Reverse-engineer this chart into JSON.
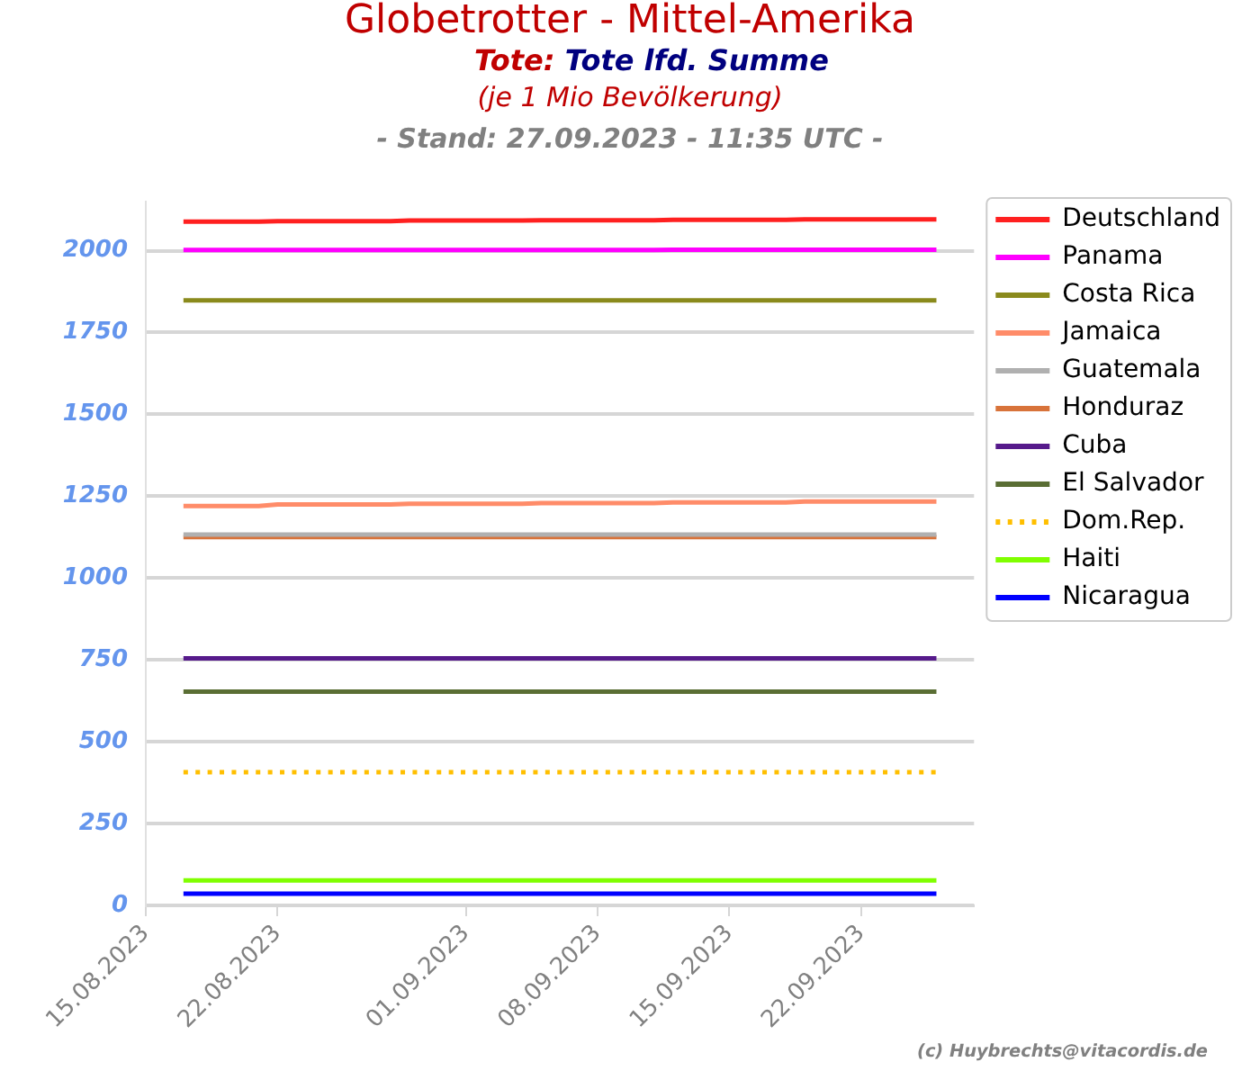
{
  "chart_data": {
    "type": "line",
    "title": "Globetrotter - Mittel-Amerika",
    "subtitle": "Tote: Tote lfd. Summe",
    "annotations": [
      "(je 1 Mio Bevölkerung)",
      "- Stand: 27.09.2023 - 11:35 UTC -",
      "(c) Huybrechts@vitacordis.de"
    ],
    "x": [
      "2023-08-17",
      "2023-08-18",
      "2023-08-19",
      "2023-08-20",
      "2023-08-21",
      "2023-08-22",
      "2023-08-23",
      "2023-08-24",
      "2023-08-25",
      "2023-08-26",
      "2023-08-27",
      "2023-08-28",
      "2023-08-29",
      "2023-08-30",
      "2023-08-31",
      "2023-09-01",
      "2023-09-02",
      "2023-09-03",
      "2023-09-04",
      "2023-09-05",
      "2023-09-06",
      "2023-09-07",
      "2023-09-08",
      "2023-09-09",
      "2023-09-10",
      "2023-09-11",
      "2023-09-12",
      "2023-09-13",
      "2023-09-14",
      "2023-09-15",
      "2023-09-16",
      "2023-09-17",
      "2023-09-18",
      "2023-09-19",
      "2023-09-20",
      "2023-09-21",
      "2023-09-22",
      "2023-09-23",
      "2023-09-24",
      "2023-09-25",
      "2023-09-26"
    ],
    "series": [
      {
        "name": "Deutschland",
        "color": "#ff2020",
        "values": [
          2089,
          2089,
          2089,
          2089,
          2089,
          2090,
          2090,
          2090,
          2090,
          2090,
          2090,
          2090,
          2092,
          2092,
          2092,
          2092,
          2092,
          2092,
          2092,
          2093,
          2093,
          2093,
          2093,
          2093,
          2093,
          2093,
          2094,
          2094,
          2094,
          2094,
          2094,
          2094,
          2094,
          2096,
          2096,
          2096,
          2096,
          2096,
          2096,
          2096,
          2096
        ]
      },
      {
        "name": "Panama",
        "color": "#ff00ff",
        "values": [
          2002,
          2002,
          2002,
          2002,
          2002,
          2002,
          2002,
          2002,
          2002,
          2002,
          2002,
          2002,
          2002,
          2002,
          2002,
          2002,
          2002,
          2002,
          2002,
          2002,
          2002,
          2002,
          2002,
          2002,
          2002,
          2002,
          2003,
          2003,
          2003,
          2003,
          2003,
          2003,
          2003,
          2003,
          2003,
          2003,
          2003,
          2003,
          2003,
          2003,
          2003
        ]
      },
      {
        "name": "Costa Rica",
        "color": "#8a8a1c",
        "values": [
          1848,
          1848,
          1848,
          1848,
          1848,
          1848,
          1848,
          1848,
          1848,
          1848,
          1848,
          1848,
          1848,
          1848,
          1848,
          1848,
          1848,
          1848,
          1848,
          1848,
          1848,
          1848,
          1848,
          1848,
          1848,
          1848,
          1848,
          1848,
          1848,
          1848,
          1848,
          1848,
          1848,
          1848,
          1848,
          1848,
          1848,
          1848,
          1848,
          1848,
          1848
        ]
      },
      {
        "name": "Jamaica",
        "color": "#ff8c69",
        "values": [
          1220,
          1220,
          1220,
          1220,
          1220,
          1225,
          1225,
          1225,
          1225,
          1225,
          1225,
          1225,
          1227,
          1227,
          1227,
          1227,
          1227,
          1227,
          1227,
          1229,
          1229,
          1229,
          1229,
          1229,
          1229,
          1229,
          1231,
          1231,
          1231,
          1231,
          1231,
          1231,
          1231,
          1234,
          1234,
          1234,
          1234,
          1234,
          1234,
          1234,
          1234
        ]
      },
      {
        "name": "Guatemala",
        "color": "#b0b0b0",
        "values": [
          1133,
          1133,
          1133,
          1133,
          1133,
          1133,
          1133,
          1133,
          1133,
          1133,
          1133,
          1133,
          1133,
          1133,
          1133,
          1133,
          1133,
          1133,
          1133,
          1133,
          1133,
          1133,
          1133,
          1133,
          1133,
          1133,
          1133,
          1133,
          1133,
          1133,
          1133,
          1133,
          1133,
          1133,
          1133,
          1133,
          1133,
          1133,
          1133,
          1133,
          1133
        ]
      },
      {
        "name": "Honduraz",
        "color": "#d8733a",
        "values": [
          1125,
          1125,
          1125,
          1125,
          1125,
          1125,
          1125,
          1125,
          1125,
          1125,
          1125,
          1125,
          1125,
          1125,
          1125,
          1125,
          1125,
          1125,
          1125,
          1125,
          1125,
          1125,
          1125,
          1125,
          1125,
          1125,
          1125,
          1125,
          1125,
          1125,
          1125,
          1125,
          1125,
          1125,
          1125,
          1125,
          1125,
          1125,
          1125,
          1125,
          1125
        ]
      },
      {
        "name": "Cuba",
        "color": "#561a8b",
        "values": [
          755,
          755,
          755,
          755,
          755,
          755,
          755,
          755,
          755,
          755,
          755,
          755,
          755,
          755,
          755,
          755,
          755,
          755,
          755,
          755,
          755,
          755,
          755,
          755,
          755,
          755,
          755,
          755,
          755,
          755,
          755,
          755,
          755,
          755,
          755,
          755,
          755,
          755,
          755,
          755,
          755
        ]
      },
      {
        "name": "El Salvador",
        "color": "#5a6e34",
        "values": [
          653,
          653,
          653,
          653,
          653,
          653,
          653,
          653,
          653,
          653,
          653,
          653,
          653,
          653,
          653,
          653,
          653,
          653,
          653,
          653,
          653,
          653,
          653,
          653,
          653,
          653,
          653,
          653,
          653,
          653,
          653,
          653,
          653,
          653,
          653,
          653,
          653,
          653,
          653,
          653,
          653
        ]
      },
      {
        "name": "Dom.Rep.",
        "color": "#ffbf00",
        "line_style": "dotted",
        "values": [
          407,
          407,
          407,
          407,
          407,
          407,
          407,
          407,
          407,
          407,
          407,
          407,
          407,
          407,
          407,
          407,
          407,
          407,
          407,
          407,
          407,
          407,
          407,
          407,
          407,
          407,
          407,
          407,
          407,
          407,
          407,
          407,
          407,
          407,
          407,
          407,
          407,
          407,
          407,
          407,
          407
        ]
      },
      {
        "name": "Haiti",
        "color": "#80ff00",
        "values": [
          76,
          76,
          76,
          76,
          76,
          76,
          76,
          76,
          76,
          76,
          76,
          76,
          76,
          76,
          76,
          76,
          76,
          76,
          76,
          76,
          76,
          76,
          76,
          76,
          76,
          76,
          76,
          76,
          76,
          76,
          76,
          76,
          76,
          76,
          76,
          76,
          76,
          76,
          76,
          76,
          76
        ]
      },
      {
        "name": "Nicaragua",
        "color": "#0000ff",
        "values": [
          36,
          36,
          36,
          36,
          36,
          36,
          36,
          36,
          36,
          36,
          36,
          36,
          36,
          36,
          36,
          36,
          36,
          36,
          36,
          36,
          36,
          36,
          36,
          36,
          36,
          36,
          36,
          36,
          36,
          36,
          36,
          36,
          36,
          36,
          36,
          36,
          36,
          36,
          36,
          36,
          36
        ]
      }
    ],
    "xlim": [
      "2023-08-15",
      "2023-09-28"
    ],
    "xticks": [
      {
        "value": "2023-08-15",
        "label": "15.08.2023"
      },
      {
        "value": "2023-08-22",
        "label": "22.08.2023"
      },
      {
        "value": "2023-09-01",
        "label": "01.09.2023"
      },
      {
        "value": "2023-09-08",
        "label": "08.09.2023"
      },
      {
        "value": "2023-09-15",
        "label": "15.09.2023"
      },
      {
        "value": "2023-09-22",
        "label": "22.09.2023"
      }
    ],
    "ylim": [
      0,
      2150
    ],
    "yticks": [
      0,
      250,
      500,
      750,
      1000,
      1250,
      1500,
      1750,
      2000
    ],
    "grid": "y",
    "legend": "right",
    "marker": "none",
    "line_style": "solid"
  }
}
